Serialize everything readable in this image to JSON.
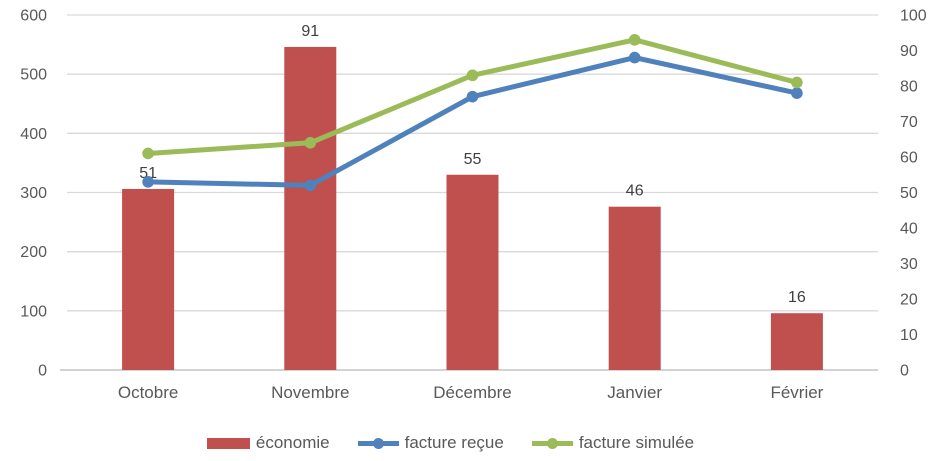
{
  "chart_data": {
    "type": "combo-bar-line",
    "title": "",
    "categories": [
      "Octobre",
      "Novembre",
      "Décembre",
      "Janvier",
      "Février"
    ],
    "series": [
      {
        "name": "économie",
        "type": "bar",
        "axis": "right",
        "color": "#C0504D",
        "values": [
          51,
          91,
          55,
          46,
          16
        ],
        "data_labels": [
          "51",
          "91",
          "55",
          "46",
          "16"
        ]
      },
      {
        "name": "facture reçue",
        "type": "line",
        "axis": "right",
        "color": "#4F81BD",
        "values": [
          53,
          52,
          77,
          88,
          78
        ]
      },
      {
        "name": "facture simulée",
        "type": "line",
        "axis": "right",
        "color": "#9BBB59",
        "values": [
          61,
          64,
          83,
          93,
          81
        ]
      }
    ],
    "left_axis": {
      "min": 0,
      "max": 600,
      "step": 100,
      "tick_labels": [
        "0",
        "100",
        "200",
        "300",
        "400",
        "500",
        "600"
      ]
    },
    "right_axis": {
      "min": 0,
      "max": 100,
      "step": 10,
      "tick_labels": [
        "0",
        "10",
        "20",
        "30",
        "40",
        "50",
        "60",
        "70",
        "80",
        "90",
        "100"
      ]
    },
    "grid": true,
    "legend_position": "bottom",
    "colors": {
      "axis_text": "#595959",
      "category_text": "#595959",
      "data_label_text": "#404040",
      "gridline": "#D9D9D9",
      "axis_line": "#D3D3D3",
      "background": "#FFFFFF"
    }
  }
}
